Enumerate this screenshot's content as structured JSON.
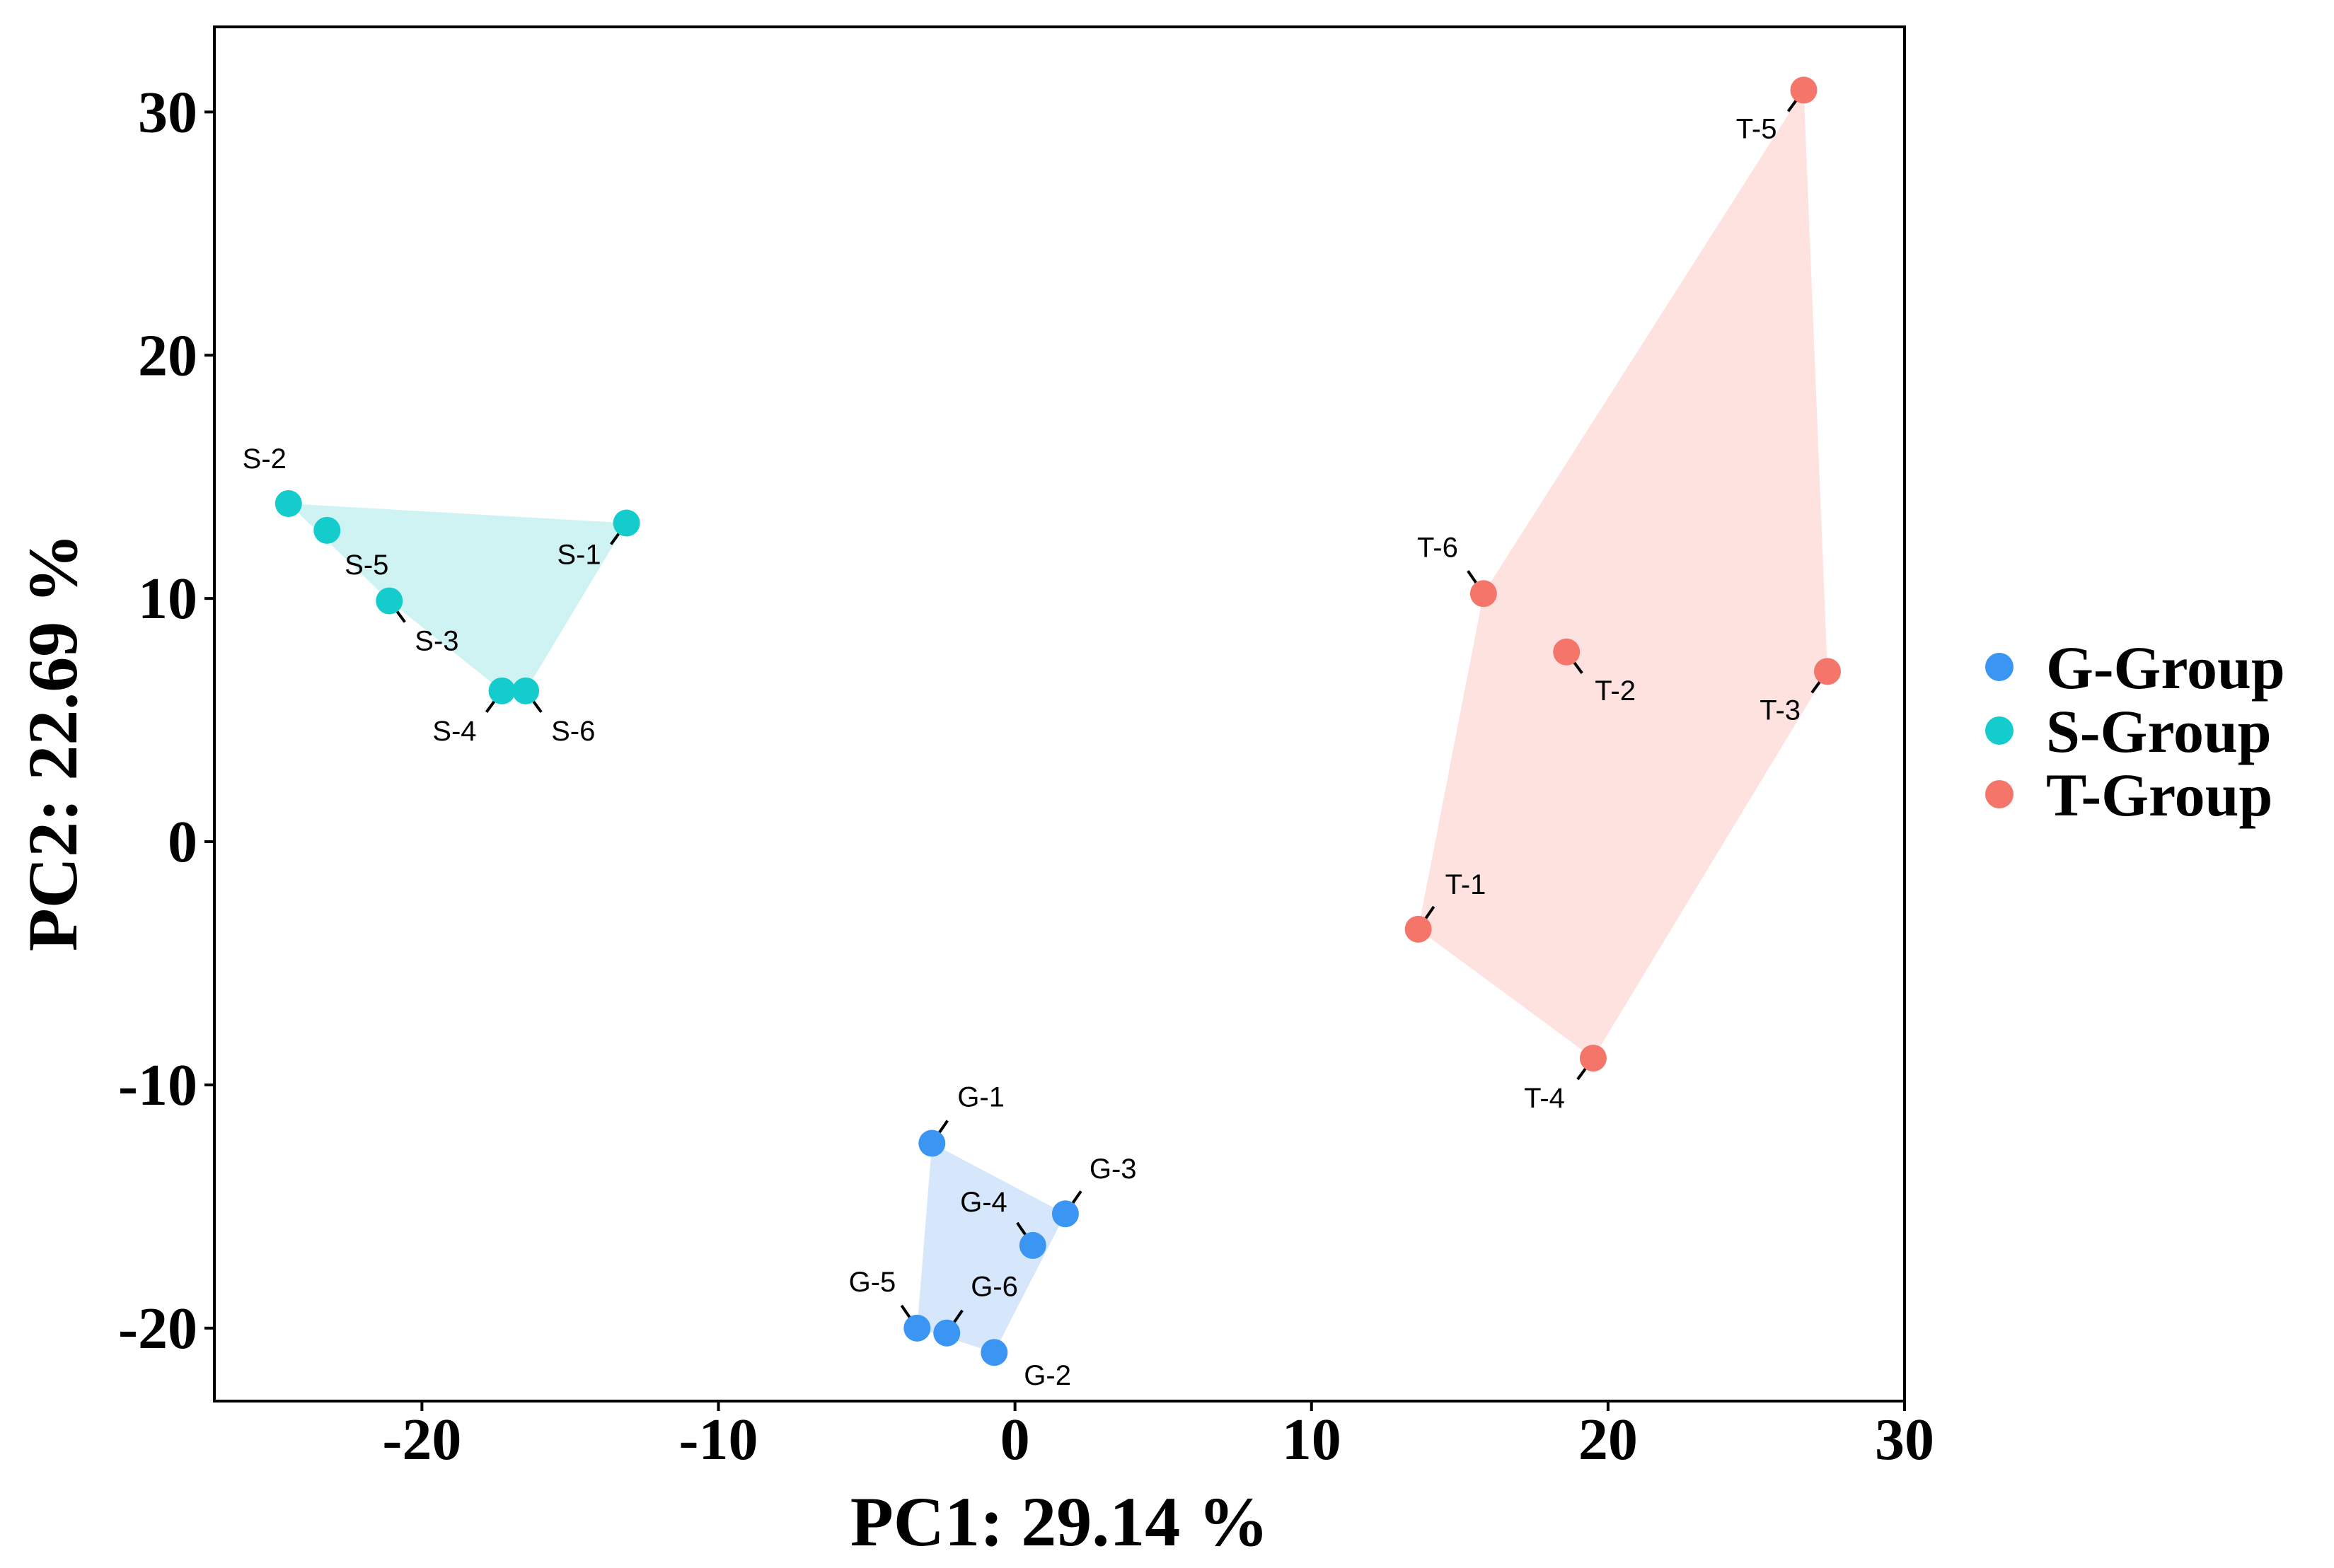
{
  "chart_data": {
    "type": "scatter",
    "xlabel": "PC1: 29.14 %",
    "ylabel": "PC2: 22.69 %",
    "xlim": [
      -27,
      30
    ],
    "ylim": [
      -23,
      33.5
    ],
    "xticks": [
      -20,
      -10,
      0,
      10,
      20,
      30
    ],
    "xtick_labels": [
      "-20",
      "-10",
      "0",
      "10",
      "20",
      "30"
    ],
    "yticks": [
      -20,
      -10,
      0,
      10,
      20,
      30
    ],
    "ytick_labels": [
      "-20",
      "-10",
      "0",
      "10",
      "20",
      "30"
    ],
    "grid": false,
    "legend_position": "right",
    "series": [
      {
        "name": "G-Group",
        "color": "#3a96f2",
        "hull_color": "#d6e7fb",
        "points": [
          {
            "label": "G-1",
            "x": -2.8,
            "y": -12.4
          },
          {
            "label": "G-2",
            "x": -0.7,
            "y": -21.0
          },
          {
            "label": "G-3",
            "x": 1.7,
            "y": -15.3
          },
          {
            "label": "G-4",
            "x": 0.6,
            "y": -16.6
          },
          {
            "label": "G-5",
            "x": -3.3,
            "y": -20.0
          },
          {
            "label": "G-6",
            "x": -2.3,
            "y": -20.2
          }
        ]
      },
      {
        "name": "S-Group",
        "color": "#15cccc",
        "hull_color": "#cff3f3",
        "points": [
          {
            "label": "S-1",
            "x": -13.1,
            "y": 13.1
          },
          {
            "label": "S-2",
            "x": -24.5,
            "y": 13.9
          },
          {
            "label": "S-3",
            "x": -21.1,
            "y": 9.9
          },
          {
            "label": "S-4",
            "x": -17.3,
            "y": 6.2
          },
          {
            "label": "S-5",
            "x": -23.2,
            "y": 12.8
          },
          {
            "label": "S-6",
            "x": -16.5,
            "y": 6.2
          }
        ]
      },
      {
        "name": "T-Group",
        "color": "#f4766a",
        "hull_color": "#fde2e0",
        "points": [
          {
            "label": "T-1",
            "x": 13.6,
            "y": -3.6
          },
          {
            "label": "T-2",
            "x": 18.6,
            "y": 7.8
          },
          {
            "label": "T-3",
            "x": 27.4,
            "y": 7.0
          },
          {
            "label": "T-4",
            "x": 19.5,
            "y": -8.9
          },
          {
            "label": "T-5",
            "x": 26.6,
            "y": 30.9
          },
          {
            "label": "T-6",
            "x": 15.8,
            "y": 10.2
          }
        ]
      }
    ]
  }
}
